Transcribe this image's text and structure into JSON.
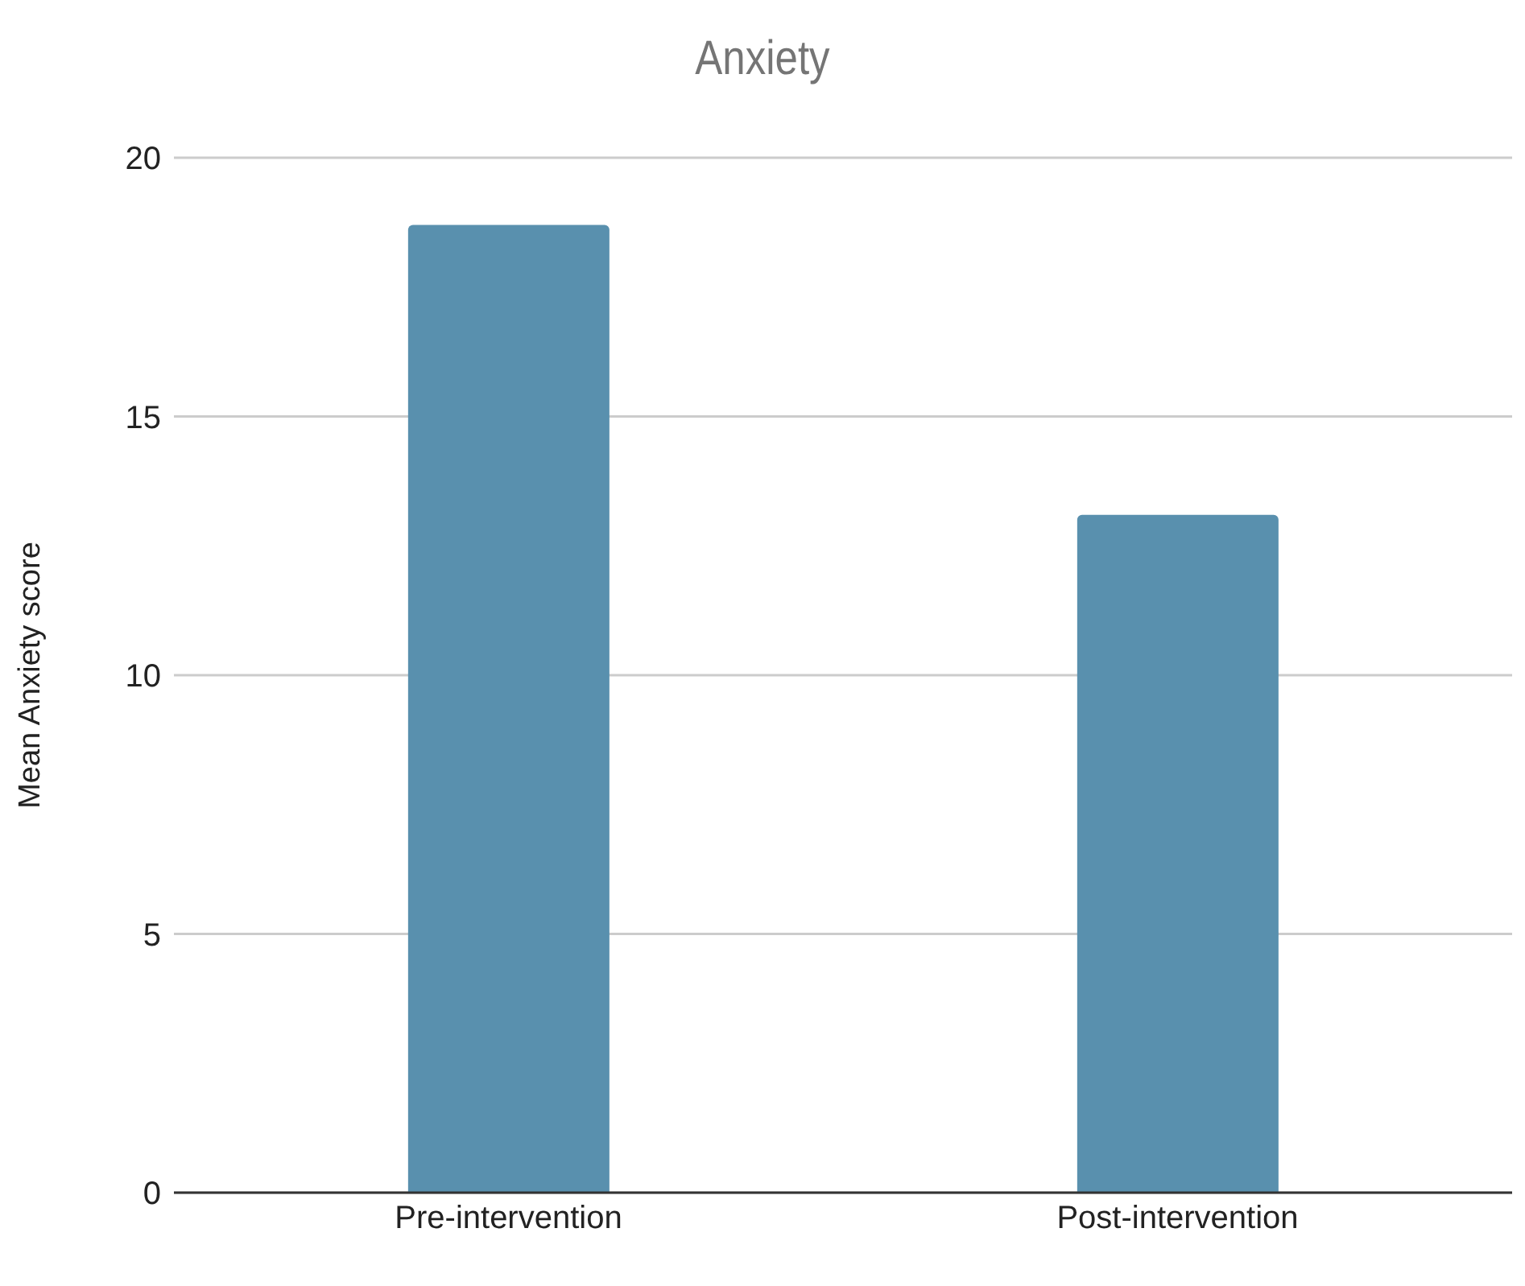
{
  "chart_data": {
    "type": "bar",
    "title": "Anxiety",
    "ylabel": "Mean Anxiety score",
    "categories": [
      "Pre-intervention",
      "Post-intervention"
    ],
    "values": [
      18.7,
      13.1
    ],
    "color": "#5990ae",
    "ylim": [
      0,
      20
    ],
    "yticks": [
      0,
      5,
      10,
      15,
      20
    ],
    "grid": "y"
  }
}
